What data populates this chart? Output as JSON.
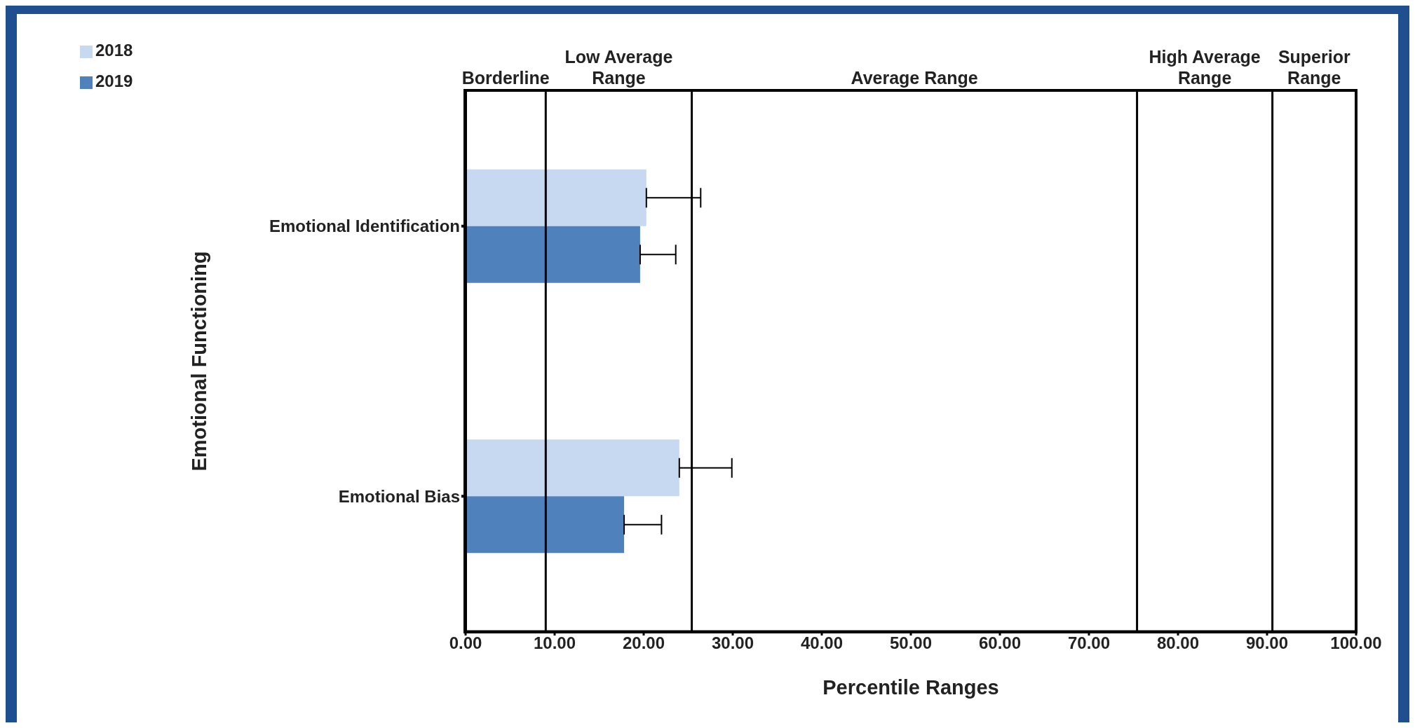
{
  "chart_data": {
    "type": "bar",
    "orientation": "horizontal",
    "xlabel": "Percentile Ranges",
    "ylabel": "Emotional Functioning",
    "categories": [
      "Emotional Identification",
      "Emotional Bias"
    ],
    "series": [
      {
        "name": "2018",
        "color": "#c6d9f0",
        "values": [
          20.3,
          24.0
        ],
        "errors": [
          [
            20.3,
            26.4
          ],
          [
            24.0,
            29.9
          ]
        ]
      },
      {
        "name": "2019",
        "color": "#4f81bd",
        "values": [
          19.6,
          17.8
        ],
        "errors": [
          [
            19.6,
            23.6
          ],
          [
            17.8,
            22.0
          ]
        ]
      }
    ],
    "xlim": [
      0,
      100
    ],
    "xticks": [
      {
        "value": 0,
        "label": "0.00"
      },
      {
        "value": 10,
        "label": "10.00"
      },
      {
        "value": 20,
        "label": "20.00"
      },
      {
        "value": 30,
        "label": "30.00"
      },
      {
        "value": 40,
        "label": "40.00"
      },
      {
        "value": 50,
        "label": "50.00"
      },
      {
        "value": 60,
        "label": "60.00"
      },
      {
        "value": 70,
        "label": "70.00"
      },
      {
        "value": 80,
        "label": "80.00"
      },
      {
        "value": 90,
        "label": "90.00"
      },
      {
        "value": 100,
        "label": "100.00"
      }
    ],
    "ref_lines": [
      {
        "axis": "x",
        "value": 9
      },
      {
        "axis": "x",
        "value": 25.4
      },
      {
        "axis": "x",
        "value": 75.4
      },
      {
        "axis": "x",
        "value": 90.6
      }
    ],
    "annotations": [
      "Borderline",
      "Low Average Range",
      "Average Range",
      "High Average Range",
      "Superior Range"
    ],
    "legend": "top left"
  }
}
